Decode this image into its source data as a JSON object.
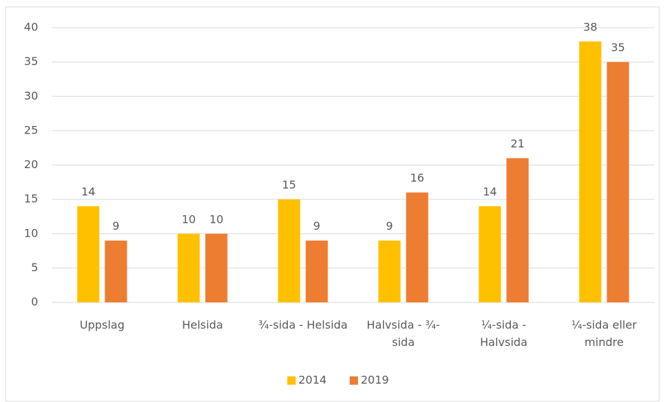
{
  "chart_data": {
    "type": "bar",
    "categories": [
      "Uppslag",
      "Helsida",
      "¾-sida - Helsida",
      "Halvsida - ¾-sida",
      "¼-sida - Halvsida",
      "¼-sida eller mindre"
    ],
    "series": [
      {
        "name": "2014",
        "color": "#ffc000",
        "values": [
          14,
          10,
          15,
          9,
          14,
          38
        ]
      },
      {
        "name": "2019",
        "color": "#ed7d31",
        "values": [
          9,
          10,
          9,
          16,
          21,
          35
        ]
      }
    ],
    "ylim": [
      0,
      40
    ],
    "yticks": [
      0,
      5,
      10,
      15,
      20,
      25,
      30,
      35,
      40
    ],
    "grid": true,
    "legend": "bottom"
  }
}
